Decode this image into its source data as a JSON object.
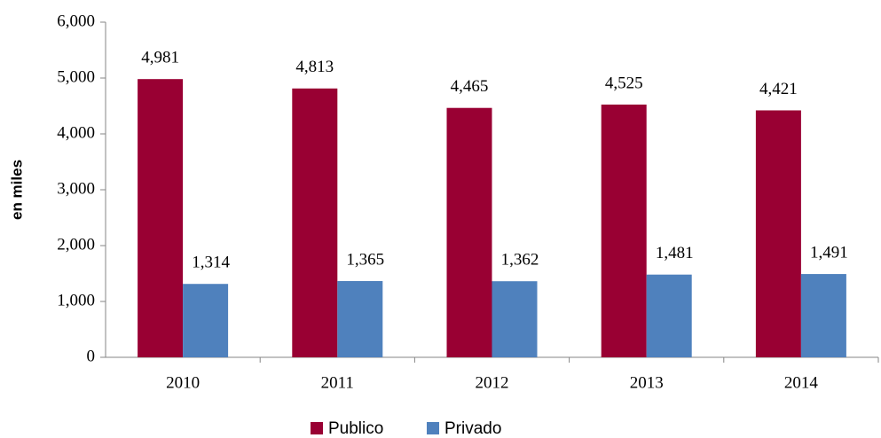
{
  "chart_data": {
    "type": "bar",
    "y_label": "en miles",
    "categories": [
      "2010",
      "2011",
      "2012",
      "2013",
      "2014"
    ],
    "series": [
      {
        "name": "Publico",
        "color": "#990033",
        "values": [
          4981,
          4813,
          4465,
          4525,
          4421
        ],
        "value_labels": [
          "4,981",
          "4,813",
          "4,465",
          "4,525",
          "4,421"
        ]
      },
      {
        "name": "Privado",
        "color": "#4f81bd",
        "values": [
          1314,
          1365,
          1362,
          1481,
          1491
        ],
        "value_labels": [
          "1,314",
          "1,365",
          "1,362",
          "1,481",
          "1,491"
        ]
      }
    ],
    "ylim": [
      0,
      6000
    ],
    "yticks": [
      0,
      {
        "value": 1000,
        "label": "1,000"
      },
      {
        "value": 2000,
        "label": "2,000"
      },
      {
        "value": 3000,
        "label": "3,000"
      },
      {
        "value": 4000,
        "label": "4,000"
      },
      {
        "value": 5000,
        "label": "5,000"
      },
      {
        "value": 6000,
        "label": "6,000"
      }
    ],
    "grid": false,
    "legend": "bottom"
  }
}
